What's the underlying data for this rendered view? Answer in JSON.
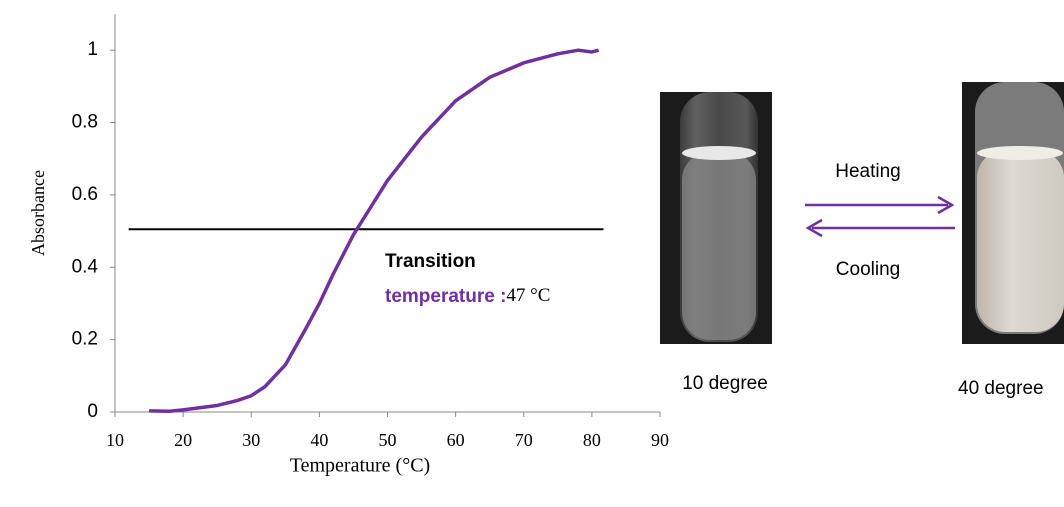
{
  "chart_data": {
    "type": "line",
    "xlabel": "Temperature (°C)",
    "ylabel": "Absorbance",
    "x": [
      15,
      18,
      20,
      25,
      28,
      30,
      32,
      35,
      38,
      40,
      42,
      45,
      47,
      50,
      55,
      60,
      65,
      70,
      75,
      78,
      80,
      81
    ],
    "series": [
      {
        "color": "#7030a0",
        "values": [
          0.003,
          0.002,
          0.006,
          0.018,
          0.032,
          0.045,
          0.07,
          0.13,
          0.23,
          0.3,
          0.38,
          0.49,
          0.55,
          0.64,
          0.76,
          0.86,
          0.925,
          0.965,
          0.99,
          1.0,
          0.995,
          1.0
        ]
      }
    ],
    "xlim": [
      10,
      90
    ],
    "xticks": [
      10,
      20,
      30,
      40,
      50,
      60,
      70,
      80,
      90
    ],
    "ylim": [
      0,
      1.1
    ],
    "yticks": [
      0,
      0.2,
      0.4,
      0.6,
      0.8,
      1
    ],
    "reference_line": {
      "color": "#000000",
      "y": 0.505,
      "x": [
        12,
        81.7
      ]
    },
    "annotation": {
      "label_lines": [
        "Transition",
        "temperature :"
      ],
      "value_text": "47 °C",
      "color": "#7030a0"
    }
  },
  "figure": {
    "heating": "Heating",
    "cooling": "Cooling",
    "left_caption": "10 degree",
    "right_caption": "40 degree"
  }
}
